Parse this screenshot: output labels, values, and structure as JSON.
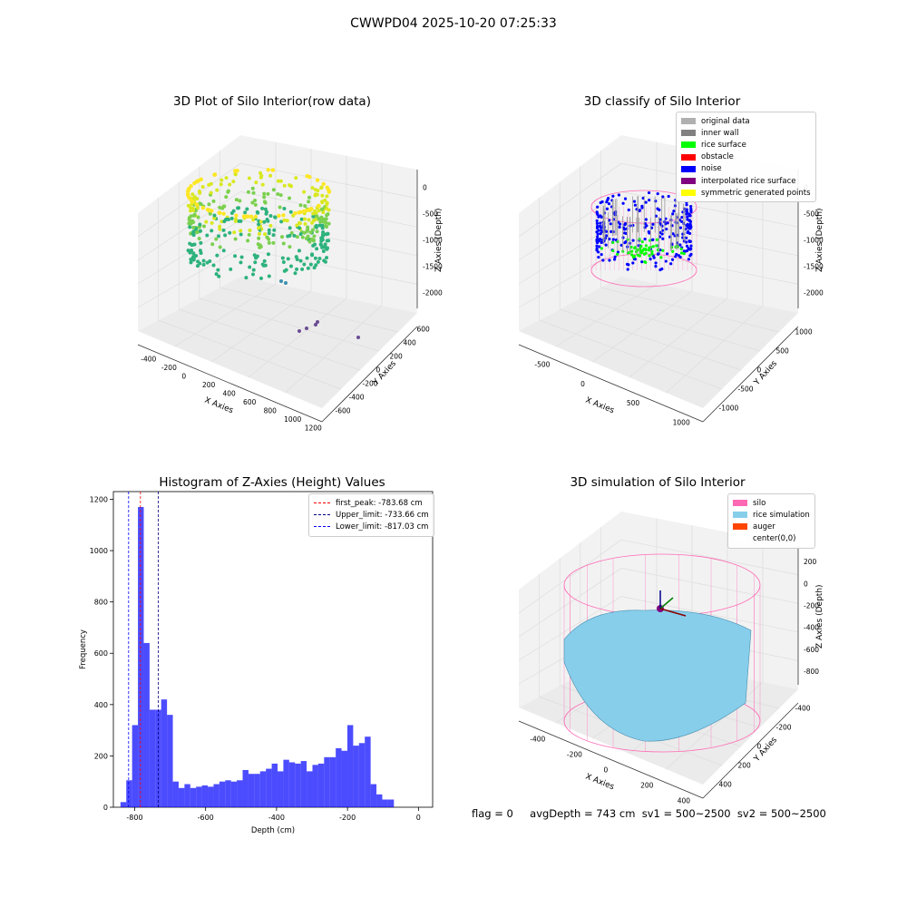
{
  "suptitle": "CWWPD04 2025-10-20 07:25:33",
  "panels": {
    "raw": {
      "title": "3D Plot of Silo Interior(row data)",
      "xlabel": "X Axies",
      "ylabel": "Y Axies",
      "zlabel": "Z Axies (Depth)",
      "xticks": [
        "-400",
        "-200",
        "0",
        "200",
        "400",
        "600",
        "800",
        "1000",
        "1200"
      ],
      "yticks": [
        "-600",
        "-400",
        "-200",
        "0",
        "200",
        "400",
        "600"
      ],
      "zticks": [
        "0",
        "-500",
        "-1000",
        "-1500",
        "-2000"
      ]
    },
    "classify": {
      "title": "3D classify of Silo Interior",
      "xlabel": "X Axies",
      "ylabel": "Y Axies",
      "zlabel": "Z Axies (Depth)",
      "xticks": [
        "-500",
        "0",
        "500",
        "1000"
      ],
      "yticks": [
        "-1000",
        "-500",
        "0",
        "500",
        "1000"
      ],
      "zticks": [
        "0",
        "-500",
        "-1000",
        "-1500",
        "-2000"
      ],
      "legend": [
        {
          "label": "original data",
          "color": "#b0b0b0"
        },
        {
          "label": "inner wall",
          "color": "#808080"
        },
        {
          "label": "rice surface",
          "color": "#00ff00"
        },
        {
          "label": "obstacle",
          "color": "#ff0000"
        },
        {
          "label": "noise",
          "color": "#0000ff"
        },
        {
          "label": "interpolated rice surface",
          "color": "#800080"
        },
        {
          "label": "symmetric generated points",
          "color": "#ffff00"
        }
      ]
    },
    "simulation": {
      "title": "3D simulation of Silo Interior",
      "xlabel": "X Axies",
      "ylabel": "Y Axies",
      "zlabel": "Z Axies (Depth)",
      "xticks": [
        "-400",
        "-200",
        "0",
        "200",
        "400"
      ],
      "yticks": [
        "400",
        "200",
        "0",
        "-200",
        "-400"
      ],
      "zticks": [
        "200",
        "0",
        "-200",
        "-400",
        "-600",
        "-800"
      ],
      "legend": [
        {
          "label": "silo",
          "color": "#ff69b4"
        },
        {
          "label": "rice simulation",
          "color": "#87ceeb"
        },
        {
          "label": "auger",
          "color": "#ff4500"
        },
        {
          "label": "center(0,0)",
          "color": "#ffffff"
        }
      ]
    }
  },
  "chart_data": {
    "type": "bar",
    "title": "Histogram of Z-Axies (Height) Values",
    "xlabel": "Depth (cm)",
    "ylabel": "Frequency",
    "xlim": [
      -860,
      40
    ],
    "ylim": [
      0,
      1230
    ],
    "xticks": [
      -800,
      -600,
      -400,
      -200,
      0
    ],
    "yticks": [
      0,
      200,
      400,
      600,
      800,
      1000,
      1200
    ],
    "bin_start": -840,
    "bin_width": 16.4,
    "values": [
      20,
      105,
      320,
      1170,
      640,
      380,
      380,
      420,
      360,
      100,
      75,
      90,
      75,
      80,
      85,
      80,
      90,
      100,
      105,
      100,
      105,
      145,
      130,
      130,
      140,
      150,
      170,
      140,
      185,
      175,
      170,
      180,
      140,
      165,
      170,
      195,
      195,
      230,
      220,
      320,
      240,
      250,
      275,
      90,
      50,
      30,
      30
    ],
    "color": "#0000ff",
    "lines": [
      {
        "label": "first_peak: -783.68 cm",
        "x": -783.68,
        "color": "#ff0000"
      },
      {
        "label": "Upper_limit: -733.66 cm",
        "x": -733.66,
        "color": "#000080"
      },
      {
        "label": "Lower_limit: -817.03 cm",
        "x": -817.03,
        "color": "#0000ff"
      }
    ]
  },
  "footer": {
    "flag": "flag = 0",
    "metrics": "avgDepth = 743 cm  sv1 = 500~2500  sv2 = 500~2500"
  }
}
